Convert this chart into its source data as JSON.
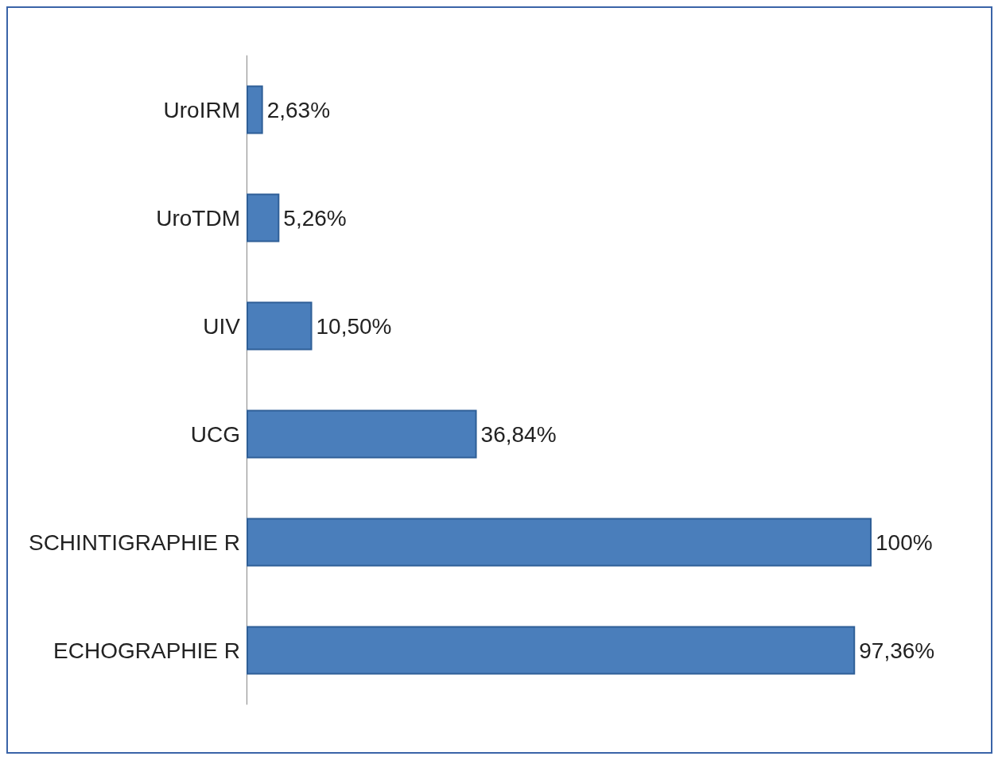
{
  "chart_data": {
    "type": "bar",
    "orientation": "horizontal",
    "categories": [
      "UroIRM",
      "UroTDM",
      "UIV",
      "UCG",
      "SCHINTIGRAPHIE R",
      "ECHOGRAPHIE R"
    ],
    "values": [
      2.63,
      5.26,
      10.5,
      36.84,
      100,
      97.36
    ],
    "value_labels": [
      "2,63%",
      "5,26%",
      "10,50%",
      "36,84%",
      "100%",
      "97,36%"
    ],
    "color": "#4a7ebb"
  }
}
